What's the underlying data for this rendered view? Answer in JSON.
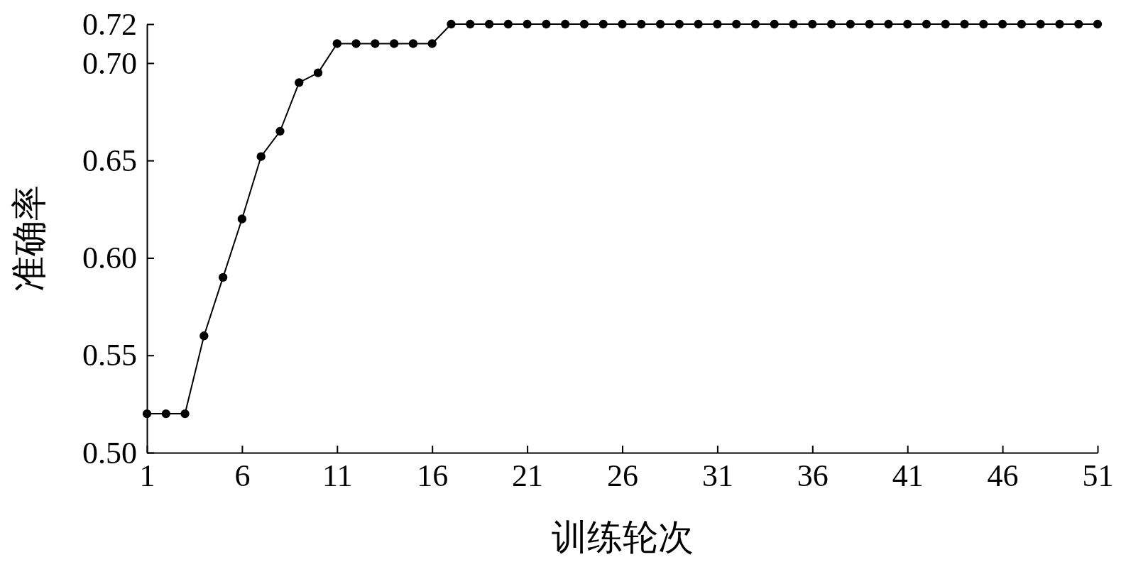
{
  "chart_data": {
    "type": "line",
    "xlabel": "训练轮次",
    "ylabel": "准确率",
    "x": [
      1,
      2,
      3,
      4,
      5,
      6,
      7,
      8,
      9,
      10,
      11,
      12,
      13,
      14,
      15,
      16,
      17,
      18,
      19,
      20,
      21,
      22,
      23,
      24,
      25,
      26,
      27,
      28,
      29,
      30,
      31,
      32,
      33,
      34,
      35,
      36,
      37,
      38,
      39,
      40,
      41,
      42,
      43,
      44,
      45,
      46,
      47,
      48,
      49,
      50,
      51
    ],
    "series": [
      {
        "color": "#000000",
        "values": [
          0.52,
          0.52,
          0.52,
          0.56,
          0.59,
          0.62,
          0.652,
          0.665,
          0.69,
          0.695,
          0.71,
          0.71,
          0.71,
          0.71,
          0.71,
          0.71,
          0.72,
          0.72,
          0.72,
          0.72,
          0.72,
          0.72,
          0.72,
          0.72,
          0.72,
          0.72,
          0.72,
          0.72,
          0.72,
          0.72,
          0.72,
          0.72,
          0.72,
          0.72,
          0.72,
          0.72,
          0.72,
          0.72,
          0.72,
          0.72,
          0.72,
          0.72,
          0.72,
          0.72,
          0.72,
          0.72,
          0.72,
          0.72,
          0.72,
          0.72,
          0.72
        ]
      }
    ],
    "xlim": [
      1,
      51
    ],
    "xticks": [
      1,
      6,
      11,
      16,
      21,
      26,
      31,
      36,
      41,
      46,
      51
    ],
    "ylim": [
      0.5,
      0.72
    ],
    "yticks": [
      {
        "value": 0.5,
        "label": "0.50"
      },
      {
        "value": 0.55,
        "label": "0.55"
      },
      {
        "value": 0.6,
        "label": "0.60"
      },
      {
        "value": 0.65,
        "label": "0.65"
      },
      {
        "value": 0.7,
        "label": "0.70"
      },
      {
        "value": 0.72,
        "label": "0.72"
      }
    ],
    "marker": "circle",
    "line_style": "solid",
    "grid": false
  }
}
